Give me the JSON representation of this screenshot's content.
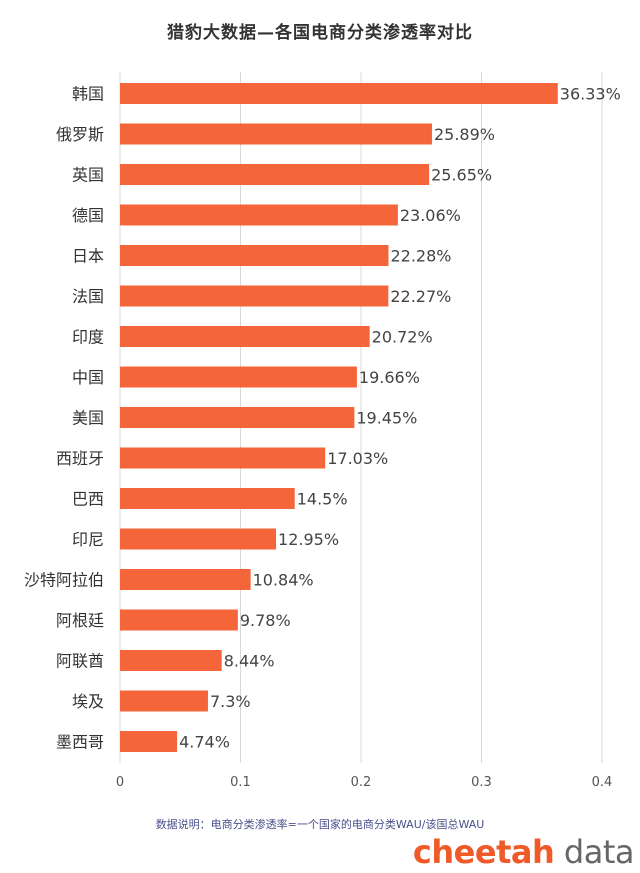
{
  "page_title": "猎豹大数据—各国电商分类渗透率对比",
  "footnote": "数据说明：电商分类渗透率=一个国家的电商分类WAU/该国总WAU",
  "brand": {
    "part1": "cheetah",
    "part2": " data"
  },
  "colors": {
    "bar": "#f4663a",
    "grid": "#d8d8d8",
    "label": "#333333",
    "value": "#444444",
    "brand": "#f05a28"
  },
  "chart_data": {
    "type": "bar",
    "orientation": "horizontal",
    "title": "猎豹大数据—各国电商分类渗透率对比",
    "categories": [
      "韩国",
      "俄罗斯",
      "英国",
      "德国",
      "日本",
      "法国",
      "印度",
      "中国",
      "美国",
      "西班牙",
      "巴西",
      "印尼",
      "沙特阿拉伯",
      "阿根廷",
      "阿联酋",
      "埃及",
      "墨西哥"
    ],
    "values": [
      0.3633,
      0.2589,
      0.2565,
      0.2306,
      0.2228,
      0.2227,
      0.2072,
      0.1966,
      0.1945,
      0.1703,
      0.145,
      0.1295,
      0.1084,
      0.0978,
      0.0844,
      0.073,
      0.0474
    ],
    "value_labels": [
      "36.33%",
      "25.89%",
      "25.65%",
      "23.06%",
      "22.28%",
      "22.27%",
      "20.72%",
      "19.66%",
      "19.45%",
      "17.03%",
      "14.5%",
      "12.95%",
      "10.84%",
      "9.78%",
      "8.44%",
      "7.3%",
      "4.74%"
    ],
    "xlim": [
      0,
      0.4
    ],
    "xticks": [
      0,
      0.1,
      0.2,
      0.3,
      0.4
    ],
    "xtick_labels": [
      "0",
      "0.1",
      "0.2",
      "0.3",
      "0.4"
    ],
    "grid": true,
    "legend": "none"
  }
}
